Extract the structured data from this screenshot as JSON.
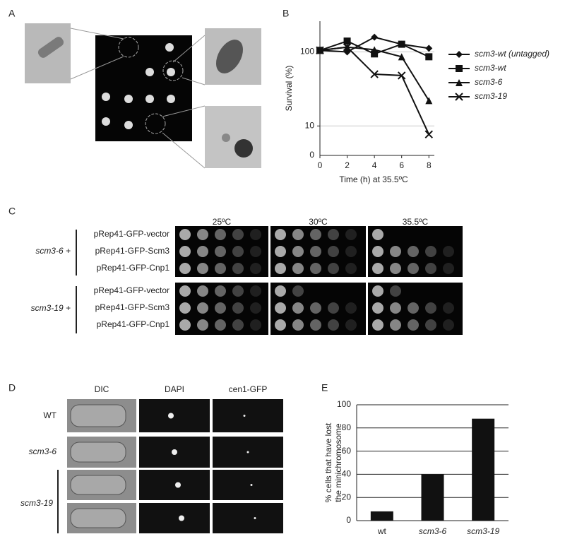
{
  "panel_labels": [
    "A",
    "B",
    "C",
    "D",
    "E"
  ],
  "chart_data": [
    {
      "type": "line",
      "xlabel": "Time (h) at 35.5ºC",
      "ylabel": "Survival (%)",
      "x": [
        0,
        2,
        4,
        6,
        8
      ],
      "xlim": [
        0,
        8.4
      ],
      "xticks": [
        0,
        2,
        4,
        6,
        8
      ],
      "ylim": [
        4,
        260
      ],
      "yticks": [
        10,
        100
      ],
      "y_scale": "log",
      "y_origin_label": "0",
      "grid": true,
      "series": [
        {
          "name": "scm3-wt (untagged)",
          "color": "#111111",
          "marker": "diamond",
          "values": [
            105,
            100,
            158,
            127,
            112
          ]
        },
        {
          "name": "scm3-wt",
          "color": "#111111",
          "marker": "square",
          "values": [
            105,
            140,
            94,
            127,
            86
          ]
        },
        {
          "name": "scm3-6",
          "color": "#111111",
          "marker": "triangle",
          "values": [
            105,
            116,
            107,
            86,
            22
          ]
        },
        {
          "name": "scm3-19",
          "color": "#111111",
          "marker": "x",
          "values": [
            105,
            116,
            50,
            48,
            7.7
          ]
        }
      ]
    },
    {
      "type": "bar",
      "ylabel": [
        "% cells that have lost",
        "the minichromosome"
      ],
      "categories": [
        "wt",
        "scm3-6",
        "scm3-19"
      ],
      "values": [
        8,
        40,
        88
      ],
      "color": "#111111",
      "ylim": [
        0,
        100
      ],
      "yticks": [
        0,
        20,
        40,
        60,
        80,
        100
      ],
      "grid": true
    }
  ],
  "spot_assay": {
    "temperatures": [
      "25ºC",
      "30ºC",
      "35.5ºC"
    ],
    "groups": [
      {
        "label": "scm3-6 +",
        "rows": [
          "pRep41-GFP-vector",
          "pRep41-GFP-Scm3",
          "pRep41-GFP-Cnp1"
        ]
      },
      {
        "label": "scm3-19 +",
        "rows": [
          "pRep41-GFP-vector",
          "pRep41-GFP-Scm3",
          "pRep41-GFP-Cnp1"
        ]
      }
    ]
  },
  "microscopy": {
    "columns": [
      "DIC",
      "DAPI",
      "cen1-GFP"
    ],
    "rows": [
      "WT",
      "scm3-6",
      "scm3-19"
    ]
  }
}
